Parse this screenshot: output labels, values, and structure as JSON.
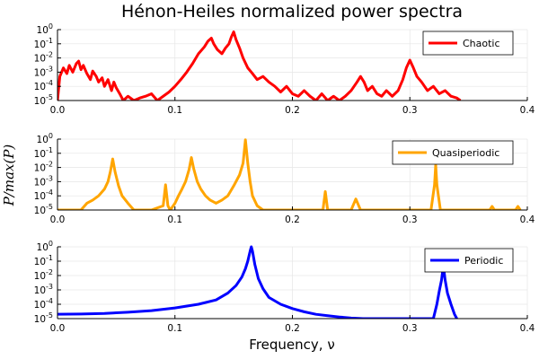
{
  "chart_data": {
    "type": "line",
    "title": "Hénon-Heiles normalized power spectra",
    "xlabel": "Frequency, ν",
    "ylabel": "P/max(P)",
    "xlim": [
      0,
      0.4
    ],
    "ylim": [
      1e-05,
      1
    ],
    "yscale": "log",
    "grid": true,
    "x_ticks": [
      "0.0",
      "0.1",
      "0.2",
      "0.3",
      "0.4"
    ],
    "y_ticks": [
      "10^-5",
      "10^-4",
      "10^-3",
      "10^-2",
      "10^-1",
      "10^0"
    ],
    "legend_position": "top-right",
    "panels": [
      {
        "series": [
          {
            "name": "Chaotic",
            "color": "#ff0000",
            "x": [
              0.0,
              0.002,
              0.005,
              0.008,
              0.01,
              0.013,
              0.016,
              0.018,
              0.02,
              0.022,
              0.025,
              0.028,
              0.03,
              0.033,
              0.035,
              0.038,
              0.04,
              0.043,
              0.046,
              0.048,
              0.05,
              0.053,
              0.056,
              0.06,
              0.065,
              0.07,
              0.075,
              0.08,
              0.085,
              0.09,
              0.095,
              0.1,
              0.105,
              0.11,
              0.115,
              0.12,
              0.125,
              0.128,
              0.131,
              0.133,
              0.136,
              0.14,
              0.143,
              0.146,
              0.148,
              0.15,
              0.152,
              0.155,
              0.158,
              0.162,
              0.166,
              0.17,
              0.175,
              0.18,
              0.185,
              0.19,
              0.195,
              0.2,
              0.205,
              0.21,
              0.215,
              0.22,
              0.225,
              0.23,
              0.235,
              0.24,
              0.245,
              0.25,
              0.255,
              0.258,
              0.261,
              0.264,
              0.268,
              0.272,
              0.276,
              0.28,
              0.285,
              0.29,
              0.294,
              0.297,
              0.3,
              0.303,
              0.306,
              0.31,
              0.315,
              0.32,
              0.325,
              0.33,
              0.335,
              0.34,
              0.343
            ],
            "y": [
              1e-05,
              0.0005,
              0.002,
              0.0008,
              0.003,
              0.001,
              0.004,
              0.006,
              0.0015,
              0.003,
              0.0008,
              0.0003,
              0.0012,
              0.0005,
              0.0002,
              0.0004,
              0.0001,
              0.0003,
              5e-05,
              0.0002,
              8e-05,
              3e-05,
              1e-05,
              2e-05,
              1e-05,
              1.5e-05,
              2e-05,
              3e-05,
              1e-05,
              2e-05,
              4e-05,
              0.0001,
              0.0003,
              0.001,
              0.004,
              0.02,
              0.06,
              0.15,
              0.25,
              0.1,
              0.04,
              0.02,
              0.05,
              0.1,
              0.3,
              0.7,
              0.2,
              0.05,
              0.01,
              0.002,
              0.0008,
              0.0003,
              0.0005,
              0.0002,
              0.0001,
              4e-05,
              0.0001,
              3e-05,
              2e-05,
              5e-05,
              2e-05,
              1e-05,
              3e-05,
              1e-05,
              2e-05,
              1e-05,
              2e-05,
              5e-05,
              0.0002,
              0.0005,
              0.0002,
              5e-05,
              0.0001,
              3e-05,
              2e-05,
              5e-05,
              2e-05,
              5e-05,
              0.0003,
              0.002,
              0.007,
              0.002,
              0.0005,
              0.0002,
              5e-05,
              0.0001,
              3e-05,
              5e-05,
              2e-05,
              1.5e-05,
              1e-05
            ]
          }
        ]
      },
      {
        "series": [
          {
            "name": "Quasiperiodic",
            "color": "#ffa500",
            "x": [
              0.0,
              0.02,
              0.025,
              0.03,
              0.035,
              0.04,
              0.043,
              0.045,
              0.047,
              0.049,
              0.052,
              0.055,
              0.06,
              0.065,
              0.07,
              0.08,
              0.09,
              0.092,
              0.094,
              0.096,
              0.1,
              0.103,
              0.106,
              0.109,
              0.112,
              0.114,
              0.116,
              0.119,
              0.122,
              0.126,
              0.13,
              0.135,
              0.14,
              0.145,
              0.15,
              0.155,
              0.158,
              0.16,
              0.162,
              0.164,
              0.166,
              0.17,
              0.175,
              0.18,
              0.22,
              0.226,
              0.228,
              0.23,
              0.235,
              0.25,
              0.254,
              0.258,
              0.318,
              0.321,
              0.322,
              0.323,
              0.326,
              0.368,
              0.37,
              0.372,
              0.39,
              0.392,
              0.394
            ],
            "y": [
              1e-05,
              1e-05,
              3e-05,
              5e-05,
              0.0001,
              0.0003,
              0.001,
              0.005,
              0.04,
              0.005,
              0.0005,
              0.0001,
              3e-05,
              1e-05,
              1e-05,
              1e-05,
              2e-05,
              0.0006,
              2e-05,
              1e-05,
              3e-05,
              0.0001,
              0.0003,
              0.001,
              0.007,
              0.05,
              0.008,
              0.001,
              0.0003,
              0.0001,
              5e-05,
              3e-05,
              5e-05,
              0.0001,
              0.0005,
              0.003,
              0.02,
              0.9,
              0.02,
              0.001,
              0.0001,
              2e-05,
              1e-05,
              1e-05,
              1e-05,
              1e-05,
              0.0002,
              1e-05,
              1e-05,
              1e-05,
              6e-05,
              1e-05,
              1e-05,
              0.0006,
              0.015,
              0.0006,
              1e-05,
              1e-05,
              1.8e-05,
              1e-05,
              1e-05,
              1.8e-05,
              1e-05
            ]
          }
        ]
      },
      {
        "series": [
          {
            "name": "Periodic",
            "color": "#0000ff",
            "x": [
              0.0,
              0.02,
              0.04,
              0.06,
              0.08,
              0.1,
              0.12,
              0.135,
              0.145,
              0.152,
              0.157,
              0.16,
              0.162,
              0.164,
              0.165,
              0.166,
              0.168,
              0.171,
              0.175,
              0.18,
              0.19,
              0.2,
              0.21,
              0.22,
              0.23,
              0.24,
              0.25,
              0.26,
              0.32,
              0.323,
              0.325,
              0.327,
              0.3285,
              0.33,
              0.332,
              0.335,
              0.338,
              0.34
            ],
            "y": [
              2e-05,
              2.1e-05,
              2.3e-05,
              2.8e-05,
              3.6e-05,
              5.5e-05,
              0.0001,
              0.0002,
              0.0006,
              0.002,
              0.008,
              0.03,
              0.1,
              0.5,
              1.0,
              0.5,
              0.06,
              0.006,
              0.0012,
              0.0003,
              0.0001,
              5e-05,
              3e-05,
              2e-05,
              1.6e-05,
              1.3e-05,
              1.1e-05,
              1e-05,
              1e-05,
              0.0001,
              0.0008,
              0.005,
              0.05,
              0.005,
              0.0006,
              0.0001,
              2e-05,
              1e-05
            ]
          }
        ]
      }
    ]
  }
}
